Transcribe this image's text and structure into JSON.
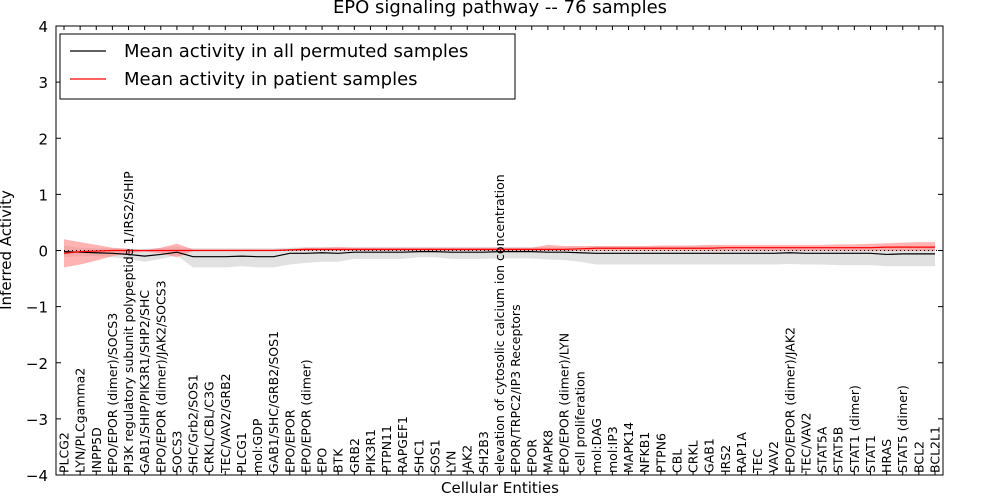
{
  "chart_data": {
    "type": "line",
    "title": "EPO signaling pathway -- 76 samples",
    "xlabel": "Cellular Entities",
    "ylabel": "Inferred Activity",
    "ylim": [
      -4,
      4
    ],
    "yticks": [
      -4,
      -3,
      -2,
      -1,
      0,
      1,
      2,
      3,
      4
    ],
    "ytick_labels": [
      "−4",
      "−3",
      "−2",
      "−1",
      "0",
      "1",
      "2",
      "3",
      "4"
    ],
    "legend_placement": "top-left",
    "grid": false,
    "series_colors": {
      "permuted": "#000000",
      "patient": "#ff0000",
      "permuted_band": "#c8c8c8",
      "patient_band": "#ff8080"
    },
    "categories": [
      "PLCG2",
      "LYN/PLCgamma2",
      "INPP5D",
      "EPO/EPOR (dimer)/SOCS3",
      "PI3K regulatory subunit polypeptide 1/IRS2/SHIP",
      "GAB1/SHIP/PIK3R1/SHP2/SHC",
      "EPO/EPOR (dimer)/JAK2/SOCS3",
      "SOCS3",
      "SHC/Grb2/SOS1",
      "CRKL/CBL/C3G",
      "TEC/VAV2/GRB2",
      "PLCG1",
      "mol:GDP",
      "GAB1/SHC/GRB2/SOS1",
      "EPO/EPOR",
      "EPO/EPOR (dimer)",
      "EPO",
      "BTK",
      "GRB2",
      "PIK3R1",
      "PTPN11",
      "RAPGEF1",
      "SHC1",
      "SOS1",
      "LYN",
      "JAK2",
      "SH2B3",
      "elevation of cytosolic calcium ion concentration",
      "EPOR/TRPC2/IP3 Receptors",
      "EPOR",
      "MAPK8",
      "EPO/EPOR (dimer)/LYN",
      "cell proliferation",
      "mol:DAG",
      "mol:IP3",
      "MAPK14",
      "NFKB1",
      "PTPN6",
      "CBL",
      "CRKL",
      "GAB1",
      "IRS2",
      "RAP1A",
      "TEC",
      "VAV2",
      "EPO/EPOR (dimer)/JAK2",
      "TEC/VAV2",
      "STAT5A",
      "STAT5B",
      "STAT1 (dimer)",
      "STAT1",
      "HRAS",
      "STAT5 (dimer)",
      "BCL2",
      "BCL2L1"
    ],
    "series": [
      {
        "name": "Mean activity in all permuted samples",
        "values": [
          -0.02,
          -0.03,
          -0.04,
          -0.05,
          -0.07,
          -0.1,
          -0.07,
          -0.03,
          -0.11,
          -0.11,
          -0.11,
          -0.1,
          -0.11,
          -0.11,
          -0.05,
          -0.05,
          -0.04,
          -0.05,
          -0.03,
          -0.03,
          -0.03,
          -0.03,
          -0.02,
          -0.02,
          -0.03,
          -0.03,
          -0.03,
          -0.02,
          -0.02,
          -0.02,
          -0.03,
          -0.03,
          -0.04,
          -0.05,
          -0.05,
          -0.05,
          -0.05,
          -0.05,
          -0.05,
          -0.05,
          -0.05,
          -0.05,
          -0.05,
          -0.05,
          -0.05,
          -0.04,
          -0.05,
          -0.05,
          -0.05,
          -0.05,
          -0.05,
          -0.07,
          -0.06,
          -0.06,
          -0.06
        ],
        "band_upper": [
          0.09,
          0.05,
          0.04,
          0.04,
          0.03,
          0.03,
          0.05,
          0.06,
          0.04,
          0.04,
          0.04,
          0.04,
          0.04,
          0.04,
          0.05,
          0.06,
          0.06,
          0.06,
          0.06,
          0.06,
          0.06,
          0.06,
          0.06,
          0.06,
          0.06,
          0.06,
          0.06,
          0.06,
          0.06,
          0.06,
          0.06,
          0.06,
          0.06,
          0.07,
          0.07,
          0.07,
          0.07,
          0.07,
          0.07,
          0.07,
          0.07,
          0.07,
          0.07,
          0.07,
          0.07,
          0.07,
          0.07,
          0.07,
          0.07,
          0.07,
          0.07,
          0.07,
          0.07,
          0.07,
          0.07
        ],
        "band_lower": [
          -0.12,
          -0.1,
          -0.1,
          -0.12,
          -0.15,
          -0.2,
          -0.15,
          -0.09,
          -0.3,
          -0.3,
          -0.3,
          -0.28,
          -0.3,
          -0.3,
          -0.25,
          -0.22,
          -0.2,
          -0.2,
          -0.15,
          -0.15,
          -0.15,
          -0.15,
          -0.12,
          -0.12,
          -0.15,
          -0.15,
          -0.15,
          -0.14,
          -0.14,
          -0.14,
          -0.16,
          -0.17,
          -0.2,
          -0.25,
          -0.25,
          -0.25,
          -0.25,
          -0.25,
          -0.25,
          -0.25,
          -0.25,
          -0.25,
          -0.25,
          -0.25,
          -0.25,
          -0.24,
          -0.25,
          -0.25,
          -0.26,
          -0.26,
          -0.26,
          -0.28,
          -0.28,
          -0.28,
          -0.28
        ]
      },
      {
        "name": "Mean activity in patient samples",
        "values": [
          -0.05,
          -0.02,
          -0.01,
          0.0,
          0.0,
          0.0,
          0.0,
          0.0,
          0.0,
          0.0,
          0.0,
          0.0,
          0.0,
          0.0,
          0.01,
          0.02,
          0.02,
          0.02,
          0.02,
          0.02,
          0.02,
          0.02,
          0.02,
          0.02,
          0.02,
          0.02,
          0.02,
          0.02,
          0.02,
          0.02,
          0.02,
          0.02,
          0.03,
          0.04,
          0.04,
          0.04,
          0.04,
          0.04,
          0.04,
          0.04,
          0.04,
          0.05,
          0.05,
          0.05,
          0.05,
          0.05,
          0.05,
          0.05,
          0.05,
          0.05,
          0.05,
          0.06,
          0.06,
          0.06,
          0.06
        ],
        "band_upper": [
          0.2,
          0.15,
          0.1,
          0.05,
          0.03,
          0.0,
          0.05,
          0.12,
          0.02,
          0.02,
          0.02,
          0.02,
          0.02,
          0.02,
          0.03,
          0.05,
          0.05,
          0.06,
          0.05,
          0.05,
          0.05,
          0.05,
          0.05,
          0.05,
          0.05,
          0.05,
          0.05,
          0.05,
          0.05,
          0.05,
          0.1,
          0.08,
          0.08,
          0.08,
          0.08,
          0.08,
          0.08,
          0.09,
          0.09,
          0.09,
          0.1,
          0.1,
          0.1,
          0.1,
          0.1,
          0.1,
          0.1,
          0.1,
          0.11,
          0.11,
          0.12,
          0.13,
          0.14,
          0.15,
          0.15
        ],
        "band_lower": [
          -0.3,
          -0.25,
          -0.18,
          -0.1,
          -0.05,
          -0.02,
          -0.05,
          -0.12,
          -0.01,
          -0.01,
          -0.01,
          -0.01,
          -0.01,
          -0.01,
          -0.01,
          -0.01,
          -0.01,
          -0.01,
          -0.01,
          -0.01,
          -0.01,
          -0.01,
          -0.01,
          -0.01,
          -0.01,
          -0.01,
          -0.01,
          -0.01,
          -0.01,
          -0.01,
          -0.01,
          -0.01,
          -0.01,
          -0.01,
          -0.01,
          -0.01,
          -0.01,
          -0.01,
          -0.01,
          -0.01,
          -0.01,
          -0.01,
          -0.01,
          -0.01,
          -0.01,
          -0.01,
          -0.01,
          -0.01,
          -0.01,
          -0.01,
          -0.01,
          -0.01,
          -0.01,
          -0.01,
          -0.01
        ]
      }
    ],
    "reference_line": {
      "y": 0,
      "style": "dotted"
    }
  }
}
